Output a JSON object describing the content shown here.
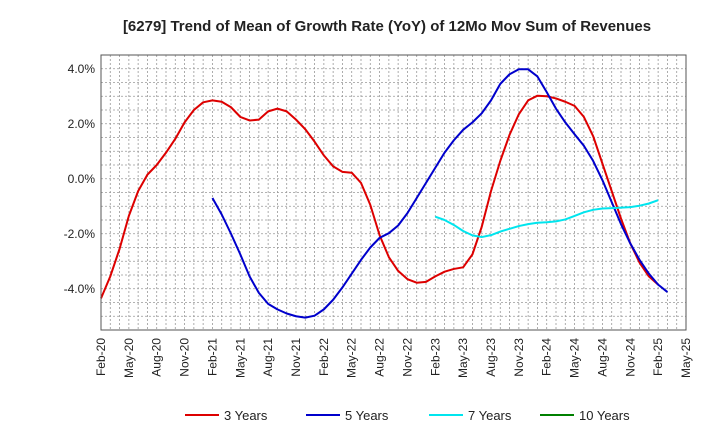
{
  "chart_data": {
    "type": "line",
    "title": "[6279]  Trend of Mean of Growth Rate (YoY) of 12Mo Mov Sum of Revenues",
    "xlabel": "",
    "ylabel": "",
    "x_start": "2020-02",
    "x_end": "2025-05",
    "ylim": [
      -5.5,
      4.5
    ],
    "yticks": [
      -4.0,
      -2.0,
      0.0,
      2.0,
      4.0
    ],
    "ytick_labels": [
      "-4.0%",
      "-2.0%",
      "0.0%",
      "2.0%",
      "4.0%"
    ],
    "xtick_labels": [
      "Feb-20",
      "May-20",
      "Aug-20",
      "Nov-20",
      "Feb-21",
      "May-21",
      "Aug-21",
      "Nov-21",
      "Feb-22",
      "May-22",
      "Aug-22",
      "Nov-22",
      "Feb-23",
      "May-23",
      "Aug-23",
      "Nov-23",
      "Feb-24",
      "May-24",
      "Aug-24",
      "Nov-24",
      "Feb-25",
      "May-25"
    ],
    "grid": true,
    "series": [
      {
        "name": "3 Years",
        "color": "#dd0000",
        "start_index": 0,
        "values": [
          -4.35,
          -3.55,
          -2.55,
          -1.35,
          -0.45,
          0.15,
          0.5,
          0.95,
          1.45,
          2.05,
          2.5,
          2.78,
          2.85,
          2.8,
          2.6,
          2.25,
          2.12,
          2.15,
          2.45,
          2.55,
          2.45,
          2.15,
          1.8,
          1.35,
          0.85,
          0.45,
          0.25,
          0.22,
          -0.15,
          -0.95,
          -2.05,
          -2.85,
          -3.35,
          -3.65,
          -3.78,
          -3.75,
          -3.55,
          -3.38,
          -3.28,
          -3.22,
          -2.75,
          -1.75,
          -0.45,
          0.65,
          1.6,
          2.35,
          2.85,
          3.02,
          3.0,
          2.92,
          2.8,
          2.65,
          2.25,
          1.55,
          0.55,
          -0.45,
          -1.45,
          -2.35,
          -3.05,
          -3.55,
          -3.85
        ]
      },
      {
        "name": "5 Years",
        "color": "#0000cc",
        "start_index": 12,
        "values": [
          -0.7,
          -1.3,
          -2.0,
          -2.75,
          -3.55,
          -4.15,
          -4.55,
          -4.75,
          -4.9,
          -5.0,
          -5.05,
          -4.98,
          -4.75,
          -4.4,
          -3.95,
          -3.45,
          -2.95,
          -2.5,
          -2.15,
          -1.98,
          -1.7,
          -1.25,
          -0.7,
          -0.15,
          0.4,
          0.95,
          1.4,
          1.78,
          2.05,
          2.38,
          2.85,
          3.45,
          3.8,
          3.98,
          3.98,
          3.72,
          3.15,
          2.55,
          2.05,
          1.62,
          1.2,
          0.65,
          -0.05,
          -0.85,
          -1.65,
          -2.35,
          -2.95,
          -3.45,
          -3.85,
          -4.12
        ]
      },
      {
        "name": "7 Years",
        "color": "#00e5ee",
        "start_index": 36,
        "values": [
          -1.38,
          -1.5,
          -1.68,
          -1.9,
          -2.06,
          -2.12,
          -2.05,
          -1.92,
          -1.82,
          -1.72,
          -1.65,
          -1.6,
          -1.58,
          -1.55,
          -1.48,
          -1.35,
          -1.22,
          -1.13,
          -1.08,
          -1.07,
          -1.05,
          -1.03,
          -0.98,
          -0.9,
          -0.78
        ]
      },
      {
        "name": "10 Years",
        "color": "#008000",
        "start_index": 0,
        "values": []
      }
    ]
  }
}
